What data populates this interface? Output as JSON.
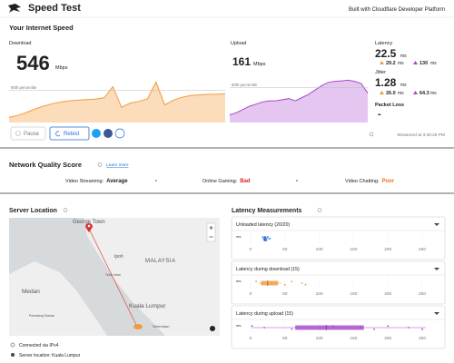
{
  "header": {
    "title": "Speed Test",
    "tagline": "Built with Cloudflare Developer Platform"
  },
  "speed": {
    "heading": "Your Internet Speed",
    "download": {
      "label": "Download",
      "value": 546,
      "unit": "Mbps",
      "percentile_label": "90th percentile",
      "ylim": [
        0,
        850
      ],
      "trace": [
        90,
        120,
        170,
        230,
        280,
        320,
        350,
        370,
        380,
        390,
        400,
        420,
        610,
        260,
        330,
        360,
        400,
        690,
        300,
        380,
        430,
        460,
        470,
        480,
        480,
        490
      ]
    },
    "upload": {
      "label": "Upload",
      "value": 161,
      "unit": "Mbps",
      "percentile_label": "90th percentile",
      "ylim": [
        0,
        230
      ],
      "trace": [
        35,
        45,
        60,
        75,
        85,
        95,
        100,
        100,
        105,
        110,
        100,
        115,
        130,
        150,
        170,
        185,
        190,
        192,
        195,
        190,
        180,
        135
      ]
    },
    "latency": {
      "label": "Latency",
      "value": "22.5",
      "unit": "ms",
      "down": "29.2",
      "down_unit": "ms",
      "up": "130",
      "up_unit": "ms"
    },
    "jitter": {
      "label": "Jitter",
      "value": "1.28",
      "unit": "ms",
      "down": "26.0",
      "down_unit": "ms",
      "up": "64.3",
      "up_unit": "ms"
    },
    "packet_loss": {
      "label": "Packet Loss",
      "value": "-"
    }
  },
  "controls": {
    "pause": "Pause",
    "retest": "Retest",
    "measured": "Measured at 3:30:29 PM"
  },
  "quality": {
    "heading": "Network Quality Score",
    "link": "Learn more",
    "items": [
      {
        "label": "Video Streaming:",
        "rating": "Average"
      },
      {
        "label": "Online Gaming:",
        "rating": "Bad"
      },
      {
        "label": "Video Chatting:",
        "rating": "Poor"
      }
    ]
  },
  "server": {
    "heading": "Server Location",
    "map_labels": [
      "George Town",
      "Ipoh",
      "MALAYSIA",
      "Medan",
      "Pematang Siantar",
      "Teluk Intan",
      "Kuala Lumpur",
      "Seremban"
    ],
    "connected": "Connected via IPv4",
    "location": "Server location: Kuala Lumpur"
  },
  "latency_measurements": {
    "heading": "Latency Measurements",
    "axis_unit": "ms",
    "xlim": [
      0,
      250
    ],
    "ticks": [
      0,
      50,
      100,
      150,
      200,
      250
    ],
    "panels": [
      {
        "title": "Unloaded latency (20/20)",
        "color": "#1f6fd6",
        "box": [
          18,
          20,
          21,
          23,
          28
        ],
        "points": [
          18,
          19,
          20,
          21,
          22,
          23,
          25,
          28
        ]
      },
      {
        "title": "Latency during download (15)",
        "color": "#f39a3c",
        "box": [
          12,
          15,
          25,
          40,
          45
        ],
        "points": [
          8,
          30,
          50,
          60,
          75,
          80
        ]
      },
      {
        "title": "Latency during upload (15)",
        "color": "#a64ac9",
        "box": [
          1,
          65,
          110,
          165,
          255
        ],
        "points": [
          2,
          20,
          60,
          120,
          160,
          180,
          200,
          230,
          250
        ]
      }
    ]
  }
}
